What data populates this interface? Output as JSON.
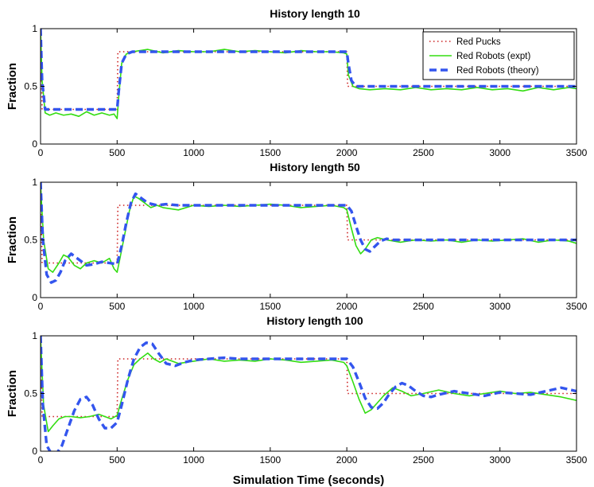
{
  "chart_data": [
    {
      "type": "line",
      "title": "History length 10",
      "ylabel": "Fraction",
      "xlabel": "",
      "xlim": [
        0,
        3500
      ],
      "ylim": [
        0,
        1
      ],
      "xticks": [
        0,
        500,
        1000,
        1500,
        2000,
        2500,
        3000,
        3500
      ],
      "yticks": [
        0,
        0.5,
        1
      ],
      "ytick_labels": [
        "0",
        "0.5",
        "1"
      ],
      "legend": {
        "position": "top-right",
        "entries": [
          "Red Pucks",
          "Red Robots (expt)",
          "Red Robots (theory)"
        ]
      },
      "series": [
        {
          "name": "Red Pucks",
          "style": "dotted",
          "color": "#cc2222",
          "x": [
            0,
            5,
            10,
            500,
            505,
            2000,
            2005,
            3500
          ],
          "y": [
            1,
            0.7,
            0.3,
            0.3,
            0.8,
            0.8,
            0.5,
            0.5
          ]
        },
        {
          "name": "Red Robots (expt)",
          "style": "solid",
          "color": "#33dd11",
          "x": [
            0,
            10,
            30,
            60,
            100,
            150,
            200,
            250,
            300,
            350,
            400,
            450,
            480,
            500,
            510,
            530,
            560,
            600,
            700,
            800,
            900,
            1000,
            1100,
            1200,
            1300,
            1400,
            1500,
            1600,
            1700,
            1800,
            1900,
            1980,
            2000,
            2010,
            2040,
            2080,
            2150,
            2250,
            2350,
            2450,
            2550,
            2650,
            2750,
            2850,
            2950,
            3050,
            3150,
            3250,
            3350,
            3450,
            3500
          ],
          "y": [
            0.98,
            0.55,
            0.27,
            0.25,
            0.27,
            0.25,
            0.26,
            0.24,
            0.28,
            0.25,
            0.27,
            0.25,
            0.26,
            0.22,
            0.4,
            0.7,
            0.78,
            0.8,
            0.82,
            0.79,
            0.81,
            0.8,
            0.8,
            0.82,
            0.8,
            0.81,
            0.8,
            0.79,
            0.81,
            0.8,
            0.8,
            0.79,
            0.78,
            0.6,
            0.5,
            0.48,
            0.47,
            0.48,
            0.47,
            0.49,
            0.47,
            0.48,
            0.47,
            0.49,
            0.47,
            0.48,
            0.46,
            0.49,
            0.47,
            0.49,
            0.48
          ]
        },
        {
          "name": "Red Robots (theory)",
          "style": "dashed",
          "color": "#3355ee",
          "x": [
            0,
            10,
            30,
            60,
            100,
            500,
            510,
            530,
            560,
            600,
            1000,
            2000,
            2010,
            2030,
            2060,
            2100,
            3500
          ],
          "y": [
            1,
            0.55,
            0.3,
            0.3,
            0.3,
            0.3,
            0.45,
            0.7,
            0.78,
            0.8,
            0.8,
            0.8,
            0.7,
            0.55,
            0.5,
            0.5,
            0.5
          ]
        }
      ]
    },
    {
      "type": "line",
      "title": "History length 50",
      "ylabel": "Fraction",
      "xlabel": "",
      "xlim": [
        0,
        3500
      ],
      "ylim": [
        0,
        1
      ],
      "xticks": [
        0,
        500,
        1000,
        1500,
        2000,
        2500,
        3000,
        3500
      ],
      "yticks": [
        0,
        0.5,
        1
      ],
      "ytick_labels": [
        "0",
        "0.5",
        "1"
      ],
      "series": [
        {
          "name": "Red Pucks",
          "style": "dotted",
          "color": "#cc2222",
          "x": [
            0,
            5,
            10,
            500,
            505,
            2000,
            2005,
            3500
          ],
          "y": [
            1,
            0.7,
            0.3,
            0.3,
            0.8,
            0.8,
            0.5,
            0.5
          ]
        },
        {
          "name": "Red Robots (expt)",
          "style": "solid",
          "color": "#33dd11",
          "x": [
            0,
            20,
            50,
            80,
            120,
            150,
            180,
            220,
            260,
            300,
            350,
            400,
            450,
            480,
            500,
            520,
            550,
            580,
            610,
            640,
            680,
            720,
            760,
            800,
            900,
            1000,
            1100,
            1200,
            1300,
            1400,
            1500,
            1600,
            1700,
            1800,
            1900,
            1980,
            2000,
            2030,
            2060,
            2090,
            2120,
            2160,
            2200,
            2260,
            2350,
            2450,
            2550,
            2650,
            2750,
            2850,
            2950,
            3050,
            3150,
            3250,
            3350,
            3450,
            3500
          ],
          "y": [
            0.98,
            0.5,
            0.25,
            0.22,
            0.3,
            0.37,
            0.35,
            0.28,
            0.25,
            0.3,
            0.32,
            0.3,
            0.34,
            0.25,
            0.22,
            0.35,
            0.55,
            0.75,
            0.88,
            0.86,
            0.82,
            0.78,
            0.8,
            0.78,
            0.76,
            0.8,
            0.79,
            0.8,
            0.79,
            0.8,
            0.81,
            0.8,
            0.78,
            0.79,
            0.8,
            0.78,
            0.76,
            0.6,
            0.45,
            0.38,
            0.42,
            0.5,
            0.52,
            0.5,
            0.48,
            0.5,
            0.49,
            0.5,
            0.48,
            0.5,
            0.49,
            0.5,
            0.51,
            0.48,
            0.5,
            0.49,
            0.47
          ]
        },
        {
          "name": "Red Robots (theory)",
          "style": "dashed",
          "color": "#3355ee",
          "x": [
            0,
            15,
            40,
            70,
            100,
            130,
            160,
            200,
            250,
            300,
            350,
            400,
            450,
            500,
            530,
            560,
            590,
            620,
            660,
            700,
            760,
            820,
            900,
            1000,
            1100,
            1200,
            1300,
            1400,
            1500,
            1600,
            1700,
            1800,
            1900,
            2000,
            2030,
            2060,
            2090,
            2120,
            2150,
            2180,
            2220,
            2260,
            2300,
            2400,
            2500,
            2600,
            2800,
            3000,
            3200,
            3400,
            3500
          ],
          "y": [
            1,
            0.5,
            0.2,
            0.13,
            0.15,
            0.22,
            0.32,
            0.38,
            0.33,
            0.28,
            0.29,
            0.31,
            0.3,
            0.29,
            0.45,
            0.65,
            0.82,
            0.9,
            0.86,
            0.82,
            0.8,
            0.81,
            0.8,
            0.8,
            0.8,
            0.8,
            0.8,
            0.8,
            0.8,
            0.8,
            0.8,
            0.8,
            0.8,
            0.8,
            0.75,
            0.62,
            0.5,
            0.42,
            0.4,
            0.44,
            0.49,
            0.51,
            0.5,
            0.5,
            0.5,
            0.5,
            0.5,
            0.5,
            0.5,
            0.5,
            0.5
          ]
        }
      ]
    },
    {
      "type": "line",
      "title": "History length 100",
      "ylabel": "Fraction",
      "xlabel": "Simulation Time (seconds)",
      "xlim": [
        0,
        3500
      ],
      "ylim": [
        0,
        1
      ],
      "xticks": [
        0,
        500,
        1000,
        1500,
        2000,
        2500,
        3000,
        3500
      ],
      "yticks": [
        0,
        0.5,
        1
      ],
      "ytick_labels": [
        "0",
        "0.5",
        "1"
      ],
      "series": [
        {
          "name": "Red Pucks",
          "style": "dotted",
          "color": "#cc2222",
          "x": [
            0,
            5,
            10,
            500,
            505,
            2000,
            2005,
            3500
          ],
          "y": [
            1,
            0.7,
            0.3,
            0.3,
            0.8,
            0.8,
            0.5,
            0.5
          ]
        },
        {
          "name": "Red Robots (expt)",
          "style": "solid",
          "color": "#33dd11",
          "x": [
            0,
            20,
            50,
            80,
            120,
            160,
            200,
            260,
            320,
            380,
            420,
            460,
            500,
            530,
            570,
            610,
            650,
            700,
            740,
            780,
            820,
            860,
            900,
            1000,
            1100,
            1200,
            1300,
            1400,
            1500,
            1600,
            1700,
            1800,
            1900,
            1980,
            2000,
            2040,
            2080,
            2120,
            2160,
            2200,
            2240,
            2300,
            2360,
            2420,
            2500,
            2600,
            2700,
            2800,
            2900,
            3000,
            3100,
            3200,
            3300,
            3400,
            3500
          ],
          "y": [
            0.98,
            0.4,
            0.17,
            0.22,
            0.28,
            0.3,
            0.3,
            0.29,
            0.3,
            0.32,
            0.3,
            0.28,
            0.31,
            0.45,
            0.62,
            0.75,
            0.8,
            0.85,
            0.8,
            0.77,
            0.8,
            0.78,
            0.76,
            0.78,
            0.8,
            0.78,
            0.79,
            0.78,
            0.8,
            0.79,
            0.77,
            0.78,
            0.79,
            0.77,
            0.74,
            0.6,
            0.45,
            0.33,
            0.36,
            0.42,
            0.48,
            0.55,
            0.52,
            0.48,
            0.5,
            0.53,
            0.5,
            0.48,
            0.5,
            0.52,
            0.5,
            0.51,
            0.49,
            0.47,
            0.44
          ]
        },
        {
          "name": "Red Robots (theory)",
          "style": "dashed",
          "color": "#3355ee",
          "x": [
            0,
            15,
            40,
            70,
            100,
            140,
            180,
            220,
            260,
            300,
            340,
            380,
            420,
            460,
            500,
            530,
            570,
            610,
            650,
            690,
            730,
            770,
            820,
            880,
            940,
            1000,
            1100,
            1200,
            1300,
            1400,
            1500,
            1600,
            1700,
            1800,
            1900,
            2000,
            2040,
            2080,
            2120,
            2160,
            2200,
            2240,
            2280,
            2320,
            2360,
            2400,
            2450,
            2500,
            2550,
            2600,
            2700,
            2800,
            2900,
            3000,
            3100,
            3200,
            3300,
            3400,
            3500
          ],
          "y": [
            1,
            0.4,
            0.05,
            -0.02,
            -0.03,
            0.05,
            0.2,
            0.35,
            0.45,
            0.47,
            0.4,
            0.28,
            0.2,
            0.2,
            0.25,
            0.4,
            0.62,
            0.8,
            0.9,
            0.94,
            0.93,
            0.85,
            0.76,
            0.74,
            0.77,
            0.79,
            0.8,
            0.81,
            0.8,
            0.8,
            0.8,
            0.8,
            0.8,
            0.8,
            0.8,
            0.8,
            0.73,
            0.6,
            0.46,
            0.38,
            0.37,
            0.42,
            0.5,
            0.56,
            0.59,
            0.57,
            0.52,
            0.48,
            0.47,
            0.49,
            0.52,
            0.5,
            0.48,
            0.51,
            0.5,
            0.49,
            0.52,
            0.55,
            0.52
          ]
        }
      ]
    }
  ]
}
